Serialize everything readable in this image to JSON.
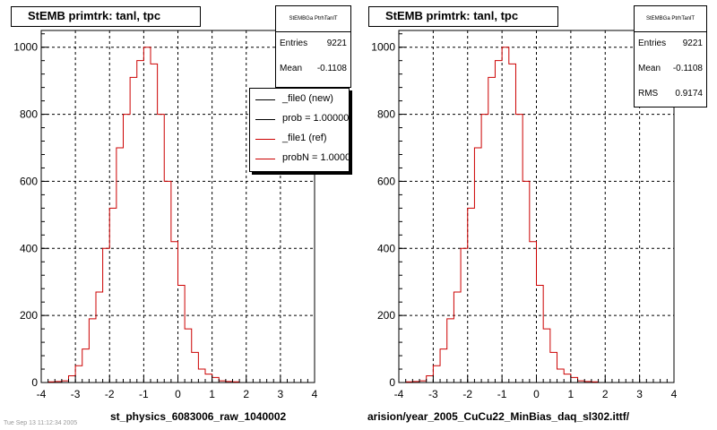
{
  "colors": {
    "axis": "#000000",
    "hist": "#cc0000",
    "grid": "#000000"
  },
  "panels": [
    {
      "title": "StEMB primtrk: tanl, tpc",
      "stats": {
        "name": "StEMBGa PtrhTanlT",
        "rows": [
          {
            "k": "Entries",
            "v": "9221"
          },
          {
            "k": "Mean",
            "v": "-0.1108"
          }
        ]
      },
      "legend": [
        {
          "label": "_file0 (new)",
          "color": "#000000"
        },
        {
          "label": "prob = 1.000000",
          "color": "#000000"
        },
        {
          "label": "_file1 (ref)",
          "color": "#cc0000"
        },
        {
          "label": "probN = 1.000000",
          "color": "#cc0000"
        }
      ],
      "caption": "st_physics_6083006_raw_1040002"
    },
    {
      "title": "StEMB primtrk: tanl, tpc",
      "stats": {
        "name": "StEMBGa PtrhTanlT",
        "rows": [
          {
            "k": "Entries",
            "v": "9221"
          },
          {
            "k": "Mean",
            "v": "-0.1108"
          },
          {
            "k": "RMS",
            "v": "0.9174"
          }
        ]
      },
      "legend": [],
      "caption": "arision/year_2005_CuCu22_MinBias_daq_sl302.ittf/"
    }
  ],
  "footer": "Tue Sep 13 11:12:34 2005",
  "chart_data": [
    {
      "type": "histogram",
      "title": "StEMB primtrk: tanl, tpc",
      "xlim": [
        -4,
        4
      ],
      "ylim": [
        0,
        1050
      ],
      "xticks": [
        "-4",
        "-3",
        "-2",
        "-1",
        "0",
        "1",
        "2",
        "3",
        "4"
      ],
      "yticks": [
        "0",
        "200",
        "400",
        "600",
        "800",
        "1000"
      ],
      "grid": true,
      "bin_width": 0.2,
      "bin_edges_start": -3.8,
      "series": [
        {
          "name": "_file1 (ref)",
          "color": "#cc0000",
          "values": [
            2,
            3,
            5,
            20,
            50,
            100,
            190,
            270,
            400,
            520,
            700,
            800,
            910,
            960,
            1000,
            950,
            800,
            600,
            420,
            290,
            160,
            90,
            40,
            25,
            15,
            5,
            3,
            2
          ]
        }
      ]
    },
    {
      "type": "histogram",
      "title": "StEMB primtrk: tanl, tpc",
      "xlim": [
        -4,
        4
      ],
      "ylim": [
        0,
        1050
      ],
      "xticks": [
        "-4",
        "-3",
        "-2",
        "-1",
        "0",
        "1",
        "2",
        "3",
        "4"
      ],
      "yticks": [
        "0",
        "200",
        "400",
        "600",
        "800",
        "1000"
      ],
      "grid": true,
      "bin_width": 0.2,
      "bin_edges_start": -3.8,
      "series": [
        {
          "color": "#cc0000",
          "values": [
            2,
            3,
            5,
            20,
            50,
            100,
            190,
            270,
            400,
            520,
            700,
            800,
            910,
            960,
            1000,
            950,
            800,
            600,
            420,
            290,
            160,
            90,
            40,
            25,
            15,
            5,
            3,
            2
          ]
        }
      ]
    }
  ]
}
